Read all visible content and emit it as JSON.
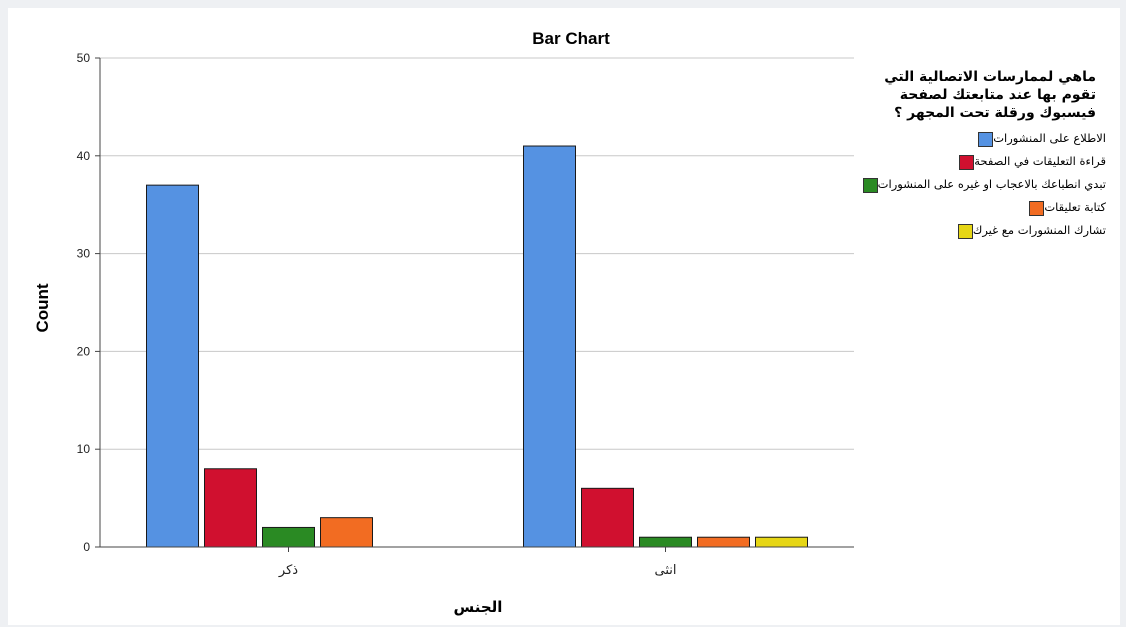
{
  "chart_data": {
    "type": "bar",
    "title": "Bar Chart",
    "xlabel": "الجنس",
    "ylabel": "Count",
    "ylim": [
      0,
      50
    ],
    "yticks": [
      0,
      10,
      20,
      30,
      40,
      50
    ],
    "grid": true,
    "legend_position": "right",
    "legend_title": "ماهي لممارسات الاتصالية التي تقوم بها عند متابعتك لصفحة فيسبوك ورقلة تحت المجهر ؟",
    "categories": [
      "ذكر",
      "انثى"
    ],
    "series": [
      {
        "name": "الاطلاع على المنشورات",
        "color": "#5592e2",
        "values": [
          37,
          41
        ]
      },
      {
        "name": "قراءة التعليقات في الصفحة",
        "color": "#d0102f",
        "values": [
          8,
          6
        ]
      },
      {
        "name": "تبدي انطباعك بالاعجاب او غيره على المنشورات",
        "color": "#2a8a23",
        "values": [
          2,
          1
        ]
      },
      {
        "name": "كتابة تعليقات",
        "color": "#f26c22",
        "values": [
          3,
          1
        ]
      },
      {
        "name": "تشارك المنشورات مع غيرك",
        "color": "#e6d615",
        "values": [
          null,
          1
        ]
      }
    ]
  }
}
